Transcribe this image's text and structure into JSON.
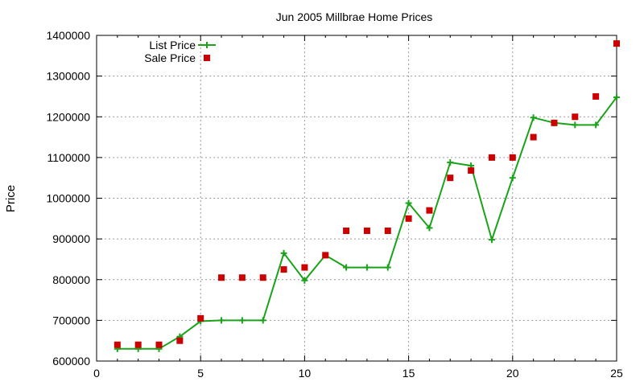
{
  "chart_data": {
    "type": "line",
    "title": "Jun 2005 Millbrae Home Prices",
    "xlabel": "",
    "ylabel": "Price",
    "xlim": [
      0,
      25
    ],
    "ylim": [
      600000,
      1400000
    ],
    "x_ticks": [
      "0",
      "5",
      "10",
      "15",
      "20",
      "25"
    ],
    "y_ticks": [
      "600000",
      "700000",
      "800000",
      "900000",
      "1000000",
      "1100000",
      "1200000",
      "1300000",
      "1400000"
    ],
    "grid": true,
    "legend_position": "top-left",
    "series": [
      {
        "name": "List Price",
        "style": "line-with-plus-markers",
        "color": "#1aa31a",
        "x": [
          1,
          2,
          3,
          4,
          5,
          6,
          7,
          8,
          9,
          10,
          11,
          12,
          13,
          14,
          15,
          16,
          17,
          18,
          19,
          20,
          21,
          22,
          23,
          24,
          25
        ],
        "values": [
          630000,
          630000,
          630000,
          660000,
          698000,
          700000,
          700000,
          700000,
          865000,
          798000,
          860000,
          830000,
          830000,
          830000,
          988000,
          927000,
          1088000,
          1080000,
          898000,
          1050000,
          1198000,
          1185000,
          1180000,
          1180000,
          1248000
        ]
      },
      {
        "name": "Sale Price",
        "style": "square-markers",
        "color": "#cc0000",
        "x": [
          1,
          2,
          3,
          4,
          5,
          6,
          7,
          8,
          9,
          10,
          11,
          12,
          13,
          14,
          15,
          16,
          17,
          18,
          19,
          20,
          21,
          22,
          23,
          24,
          25
        ],
        "values": [
          640000,
          640000,
          640000,
          650000,
          705000,
          805000,
          805000,
          805000,
          825000,
          830000,
          860000,
          920000,
          920000,
          920000,
          950000,
          970000,
          1050000,
          1068000,
          1100000,
          1100000,
          1150000,
          1185000,
          1200000,
          1250000,
          1380000
        ]
      }
    ]
  }
}
